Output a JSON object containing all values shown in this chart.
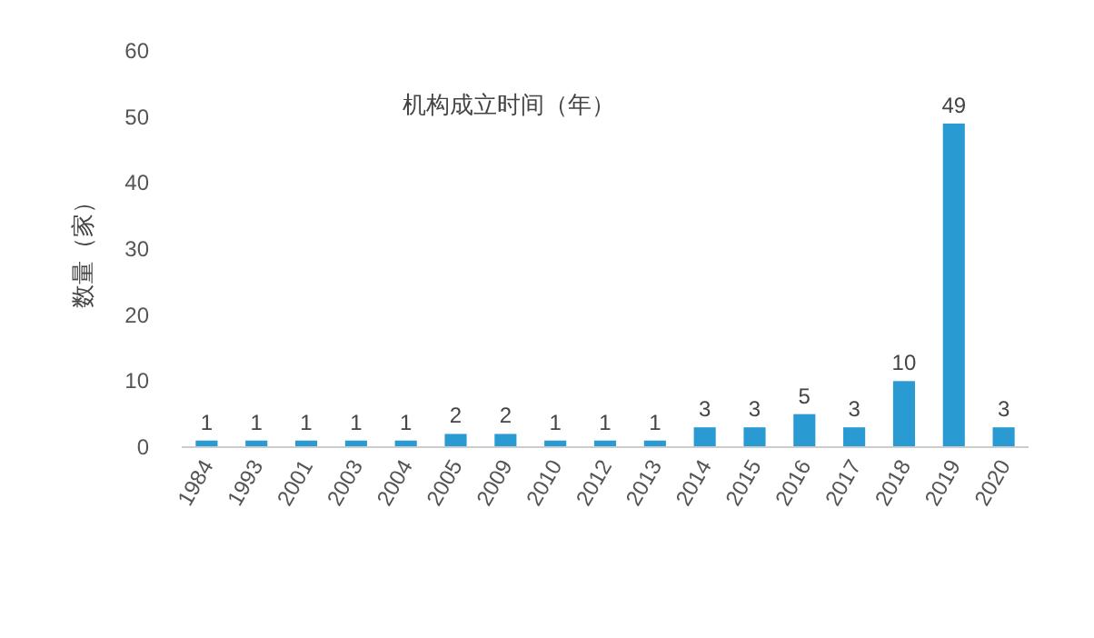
{
  "chart_data": {
    "type": "bar",
    "title": "机构成立时间（年）",
    "ylabel": "数量（家）",
    "categories": [
      "1984",
      "1993",
      "2001",
      "2003",
      "2004",
      "2005",
      "2009",
      "2010",
      "2012",
      "2013",
      "2014",
      "2015",
      "2016",
      "2017",
      "2018",
      "2019",
      "2020"
    ],
    "values": [
      1,
      1,
      1,
      1,
      1,
      2,
      2,
      1,
      1,
      1,
      3,
      3,
      5,
      3,
      10,
      49,
      3
    ],
    "color": "#2a9ad3",
    "ylim": [
      0,
      60
    ],
    "yticks": [
      0,
      10,
      20,
      30,
      40,
      50,
      60
    ],
    "data_labels": true
  }
}
